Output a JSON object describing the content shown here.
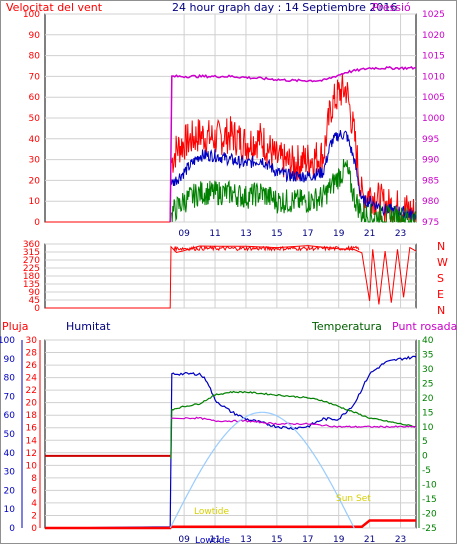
{
  "header": {
    "left_label": "Velocitat del vent",
    "title": "24 hour graph day : 14 Septiembre 2016",
    "right_label": "Pressió"
  },
  "colors": {
    "red": "#ff0000",
    "darkred": "#cc0000",
    "blue": "#0000c0",
    "green": "#008000",
    "magenta": "#cc00cc",
    "lightblue": "#99ccff",
    "yellow": "#e8e000",
    "grid": "#d0d0d0"
  },
  "chart_data": [
    {
      "type": "line",
      "panel": "wind",
      "ylabel_left": "Velocitat del vent",
      "ylabel_right": "Pressió",
      "x_ticks": [
        "09",
        "11",
        "13",
        "15",
        "17",
        "19",
        "21",
        "23"
      ],
      "y_left_ticks": [
        0,
        10,
        20,
        30,
        40,
        50,
        60,
        70,
        80,
        90,
        100
      ],
      "y_right_ticks": [
        975,
        980,
        985,
        990,
        995,
        1000,
        1005,
        1010,
        1015,
        1020,
        1025
      ],
      "ylim_left": [
        0,
        100
      ],
      "ylim_right": [
        975,
        1025
      ],
      "series": [
        {
          "key": "gust",
          "color": "red",
          "points": [
            [
              0,
              0
            ],
            [
              8.1,
              0
            ],
            [
              8.15,
              28
            ],
            [
              8.5,
              35
            ],
            [
              9,
              38
            ],
            [
              10,
              42
            ],
            [
              11,
              40
            ],
            [
              12,
              42
            ],
            [
              13,
              38
            ],
            [
              14,
              40
            ],
            [
              15,
              30
            ],
            [
              16,
              28
            ],
            [
              17,
              30
            ],
            [
              18,
              32
            ],
            [
              18.5,
              55
            ],
            [
              19,
              62
            ],
            [
              19.5,
              64
            ],
            [
              20,
              42
            ],
            [
              20.5,
              12
            ],
            [
              21,
              14
            ],
            [
              22,
              8
            ],
            [
              23,
              7
            ],
            [
              24,
              4
            ]
          ]
        },
        {
          "key": "avg",
          "color": "blue",
          "points": [
            [
              8.15,
              18
            ],
            [
              9,
              24
            ],
            [
              10,
              32
            ],
            [
              11,
              32
            ],
            [
              12,
              30
            ],
            [
              13,
              28
            ],
            [
              14,
              30
            ],
            [
              15,
              24
            ],
            [
              16,
              22
            ],
            [
              17,
              22
            ],
            [
              18,
              24
            ],
            [
              18.5,
              38
            ],
            [
              19,
              42
            ],
            [
              19.5,
              42
            ],
            [
              20,
              30
            ],
            [
              20.5,
              10
            ],
            [
              21,
              10
            ],
            [
              22,
              6
            ],
            [
              23,
              5
            ],
            [
              24,
              3
            ]
          ]
        },
        {
          "key": "min",
          "color": "green",
          "points": [
            [
              8.15,
              4
            ],
            [
              9,
              10
            ],
            [
              10,
              14
            ],
            [
              11,
              14
            ],
            [
              12,
              14
            ],
            [
              13,
              12
            ],
            [
              14,
              14
            ],
            [
              15,
              10
            ],
            [
              16,
              10
            ],
            [
              17,
              10
            ],
            [
              18,
              12
            ],
            [
              19,
              22
            ],
            [
              19.5,
              26
            ],
            [
              20,
              12
            ],
            [
              20.5,
              4
            ],
            [
              21,
              3
            ],
            [
              22,
              2
            ],
            [
              23,
              2
            ],
            [
              24,
              1
            ]
          ]
        },
        {
          "key": "pressure",
          "color": "magenta",
          "axis": "right",
          "points": [
            [
              8.1,
              975
            ],
            [
              8.15,
              1010
            ],
            [
              12,
              1010
            ],
            [
              16,
              1009
            ],
            [
              18,
              1009
            ],
            [
              19.5,
              1011
            ],
            [
              21,
              1012
            ],
            [
              24,
              1012
            ]
          ]
        }
      ]
    },
    {
      "type": "line",
      "panel": "direction",
      "y_left_ticks": [
        0,
        45,
        90,
        135,
        180,
        225,
        270,
        315,
        360
      ],
      "right_labels": [
        "N",
        "W",
        "S",
        "E",
        "N"
      ],
      "ylim": [
        0,
        360
      ],
      "series": [
        {
          "key": "dir",
          "color": "red",
          "points": [
            [
              0,
              0
            ],
            [
              8.1,
              0
            ],
            [
              8.15,
              345
            ],
            [
              8.5,
              320
            ],
            [
              9,
              330
            ],
            [
              10,
              345
            ],
            [
              11,
              340
            ],
            [
              13,
              345
            ],
            [
              15,
              340
            ],
            [
              17,
              345
            ],
            [
              19,
              335
            ],
            [
              20,
              330
            ],
            [
              20.5,
              310
            ],
            [
              21,
              40
            ],
            [
              21.2,
              330
            ],
            [
              21.6,
              20
            ],
            [
              22,
              320
            ],
            [
              22.4,
              30
            ],
            [
              22.8,
              330
            ],
            [
              23.2,
              60
            ],
            [
              23.6,
              340
            ],
            [
              24,
              320
            ]
          ]
        }
      ]
    },
    {
      "type": "line",
      "panel": "temperature",
      "left_label": "Pluja",
      "left2_label": "Humitat",
      "right_label": "Temperatura",
      "right2_label": "Punt rosada",
      "y_rain_ticks": [
        0,
        2,
        4,
        6,
        8,
        10,
        12,
        14,
        16,
        18,
        20,
        22,
        24,
        26,
        28,
        30
      ],
      "y_hum_ticks": [
        0,
        10,
        20,
        30,
        40,
        50,
        60,
        70,
        80,
        90,
        100
      ],
      "y_temp_ticks": [
        -25,
        -20,
        -15,
        -10,
        -5,
        0,
        5,
        10,
        15,
        20,
        25,
        30,
        35,
        40
      ],
      "ylim_rain": [
        0,
        30
      ],
      "ylim_hum": [
        0,
        100
      ],
      "ylim_temp": [
        -25,
        40
      ],
      "x_ticks": [
        "09",
        "11",
        "13",
        "15",
        "17",
        "19",
        "21",
        "23"
      ],
      "annotations": {
        "lowtide": "Lowtide",
        "sunset": "Sun Set"
      },
      "series": [
        {
          "key": "humidity",
          "color": "blue",
          "axis": "hum",
          "points": [
            [
              0,
              0
            ],
            [
              8.1,
              0
            ],
            [
              8.15,
              82
            ],
            [
              9,
              82
            ],
            [
              10,
              82
            ],
            [
              10.5,
              78
            ],
            [
              11,
              68
            ],
            [
              12,
              62
            ],
            [
              13,
              58
            ],
            [
              14,
              56
            ],
            [
              15,
              54
            ],
            [
              16,
              53
            ],
            [
              17,
              54
            ],
            [
              18,
              58
            ],
            [
              19,
              58
            ],
            [
              19.5,
              62
            ],
            [
              20,
              66
            ],
            [
              21,
              82
            ],
            [
              22,
              88
            ],
            [
              23,
              90
            ],
            [
              24,
              91
            ]
          ]
        },
        {
          "key": "temp",
          "color": "green",
          "axis": "temp",
          "points": [
            [
              8.15,
              0
            ],
            [
              8.2,
              16
            ],
            [
              9,
              17
            ],
            [
              10,
              18
            ],
            [
              11,
              21
            ],
            [
              12,
              22
            ],
            [
              13,
              22
            ],
            [
              15,
              21
            ],
            [
              17,
              20
            ],
            [
              18,
              19
            ],
            [
              19,
              17
            ],
            [
              20,
              15
            ],
            [
              21,
              13
            ],
            [
              22,
              12
            ],
            [
              23,
              11
            ],
            [
              24,
              10
            ]
          ]
        },
        {
          "key": "dewpoint",
          "color": "magenta",
          "axis": "temp",
          "points": [
            [
              8.15,
              13
            ],
            [
              9,
              13
            ],
            [
              10,
              13
            ],
            [
              11,
              12
            ],
            [
              13,
              12
            ],
            [
              15,
              11
            ],
            [
              17,
              11
            ],
            [
              19,
              10
            ],
            [
              20,
              10
            ],
            [
              21,
              10
            ],
            [
              22,
              10
            ],
            [
              23,
              10
            ],
            [
              24,
              10
            ]
          ]
        },
        {
          "key": "rain",
          "color": "red",
          "axis": "rain",
          "points": [
            [
              0,
              0
            ],
            [
              8.1,
              0
            ],
            [
              8.15,
              0.2
            ],
            [
              20.5,
              0.2
            ],
            [
              21,
              1.2
            ],
            [
              24,
              1.2
            ]
          ]
        },
        {
          "key": "rain_hist",
          "color": "darkred",
          "axis": "rain",
          "points": [
            [
              0,
              11.5
            ],
            [
              8.1,
              11.5
            ]
          ]
        },
        {
          "key": "solar",
          "color": "lightblue",
          "axis": "temp",
          "points": [
            [
              8.1,
              -25
            ],
            [
              13.5,
              15
            ],
            [
              20,
              -25
            ]
          ]
        }
      ]
    }
  ]
}
